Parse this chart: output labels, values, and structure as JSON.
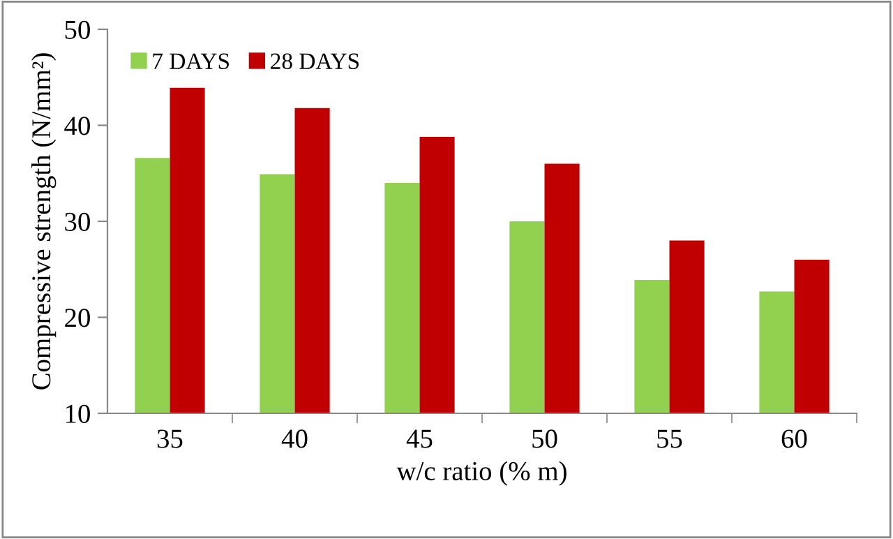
{
  "chart_data": {
    "type": "bar",
    "xlabel": "w/c ratio (% m)",
    "ylabel": "Compressive strength (N/mm²)",
    "categories": [
      "35",
      "40",
      "45",
      "50",
      "55",
      "60"
    ],
    "series": [
      {
        "name": "7 DAYS",
        "color": "#92d050",
        "values": [
          36.6,
          34.9,
          34.0,
          30.0,
          23.9,
          22.7
        ]
      },
      {
        "name": "28 DAYS",
        "color": "#c00000",
        "values": [
          43.9,
          41.8,
          38.8,
          36.0,
          28.0,
          26.0
        ]
      }
    ],
    "ylim": [
      10,
      50
    ],
    "yticks": [
      10,
      20,
      30,
      40,
      50
    ],
    "grid": false,
    "legend": "top left"
  }
}
